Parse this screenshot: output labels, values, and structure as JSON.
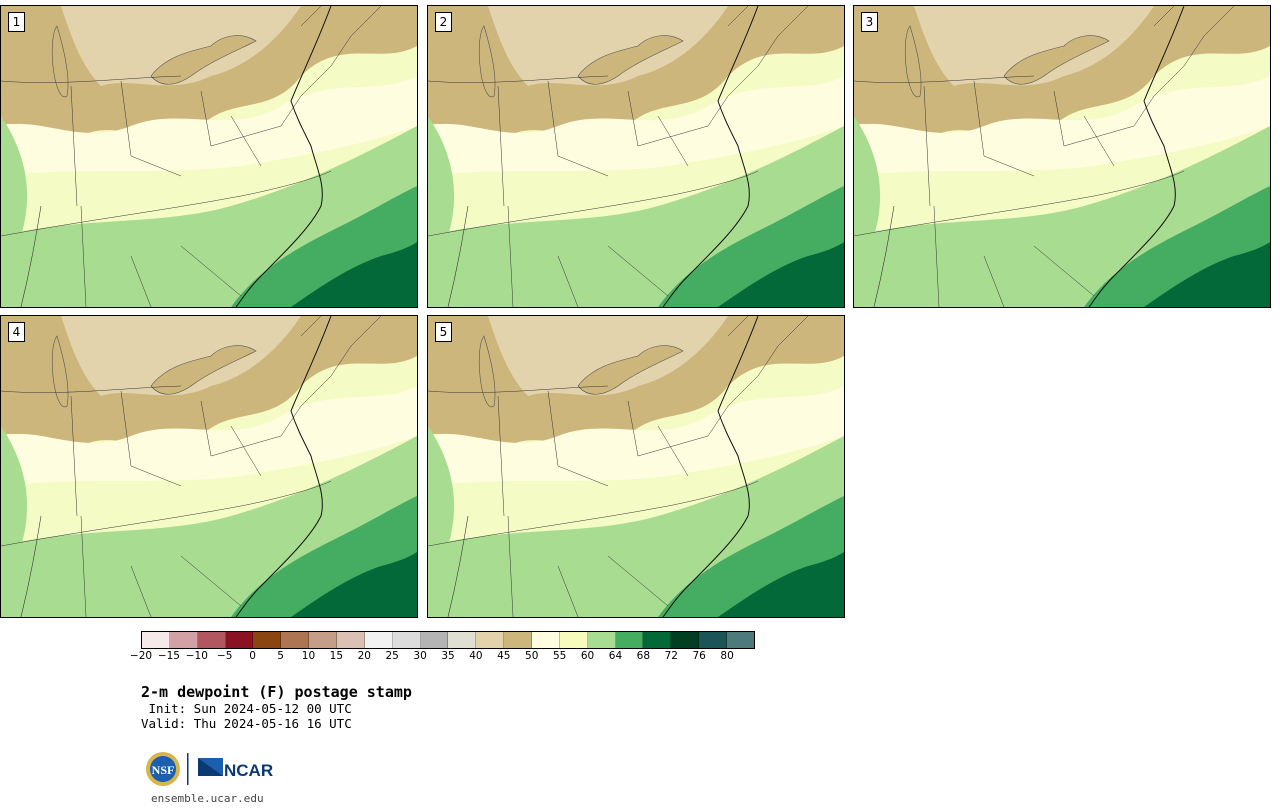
{
  "panels": [
    {
      "label": "1"
    },
    {
      "label": "2"
    },
    {
      "label": "3"
    },
    {
      "label": "4"
    },
    {
      "label": "5"
    }
  ],
  "colorbar": {
    "colors": [
      "#f5e9e9",
      "#d2a1a5",
      "#b0575f",
      "#8b1220",
      "#8b4513",
      "#ad7552",
      "#c49e86",
      "#dcc0b3",
      "#f2f2f2",
      "#dcdcdc",
      "#b4b4b4",
      "#e0e0d2",
      "#e2d3ad",
      "#cdb67c",
      "#fffde0",
      "#f7fbbc",
      "#a8dc90",
      "#44ad62",
      "#036938",
      "#023f22",
      "#1c5557",
      "#4d7a7a"
    ],
    "tick_labels": [
      "−20",
      "−15",
      "−10",
      "−5",
      "0",
      "5",
      "10",
      "15",
      "20",
      "25",
      "30",
      "35",
      "40",
      "45",
      "50",
      "55",
      "60",
      "64",
      "68",
      "72",
      "76",
      "80"
    ]
  },
  "title": "2-m dewpoint (F) postage stamp",
  "init": " Init: Sun 2024-05-12 00 UTC",
  "valid": "Valid: Thu 2024-05-16 16 UTC",
  "logos": {
    "nsf": "NSF",
    "ncar": "NCAR"
  },
  "site": "ensemble.ucar.edu"
}
